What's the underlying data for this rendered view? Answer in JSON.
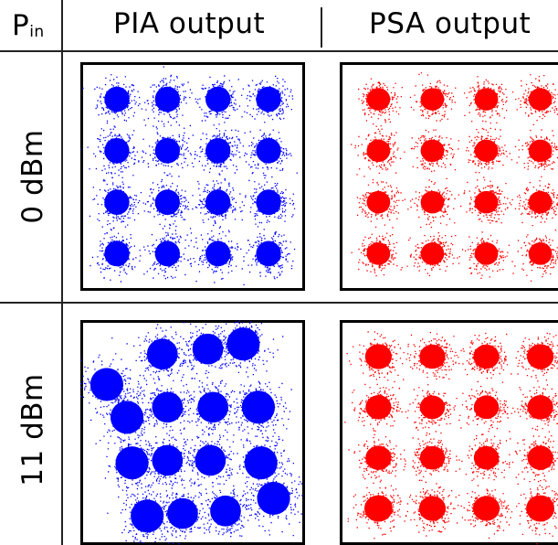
{
  "header": {
    "pin_label": "P",
    "pin_subscript": "in",
    "col1_title": "PIA output",
    "col2_title": "PSA output"
  },
  "rows": [
    {
      "label": "0 dBm"
    },
    {
      "label": "11 dBm"
    }
  ],
  "chart_data": [
    {
      "type": "scatter",
      "title": "PIA output — 0 dBm",
      "color": "#0000ff",
      "constellation": "16-QAM",
      "grid": false,
      "clusters": [
        {
          "x": -3,
          "y": 3,
          "spread": 0.34
        },
        {
          "x": -1,
          "y": 3,
          "spread": 0.34
        },
        {
          "x": 1,
          "y": 3,
          "spread": 0.34
        },
        {
          "x": 3,
          "y": 3,
          "spread": 0.34
        },
        {
          "x": -3,
          "y": 1,
          "spread": 0.34
        },
        {
          "x": -1,
          "y": 1,
          "spread": 0.34
        },
        {
          "x": 1,
          "y": 1,
          "spread": 0.34
        },
        {
          "x": 3,
          "y": 1,
          "spread": 0.34
        },
        {
          "x": -3,
          "y": -1,
          "spread": 0.34
        },
        {
          "x": -1,
          "y": -1,
          "spread": 0.34
        },
        {
          "x": 1,
          "y": -1,
          "spread": 0.34
        },
        {
          "x": 3,
          "y": -1,
          "spread": 0.34
        },
        {
          "x": -3,
          "y": -3,
          "spread": 0.34
        },
        {
          "x": -1,
          "y": -3,
          "spread": 0.34
        },
        {
          "x": 1,
          "y": -3,
          "spread": 0.34
        },
        {
          "x": 3,
          "y": -3,
          "spread": 0.34
        }
      ]
    },
    {
      "type": "scatter",
      "title": "PSA output — 0 dBm",
      "color": "#ff0000",
      "constellation": "16-QAM",
      "grid": false,
      "clusters": [
        {
          "x": -3,
          "y": 3,
          "spread": 0.3
        },
        {
          "x": -1,
          "y": 3,
          "spread": 0.3
        },
        {
          "x": 1,
          "y": 3,
          "spread": 0.3
        },
        {
          "x": 3,
          "y": 3,
          "spread": 0.3
        },
        {
          "x": -3,
          "y": 1,
          "spread": 0.3
        },
        {
          "x": -1,
          "y": 1,
          "spread": 0.3
        },
        {
          "x": 1,
          "y": 1,
          "spread": 0.3
        },
        {
          "x": 3,
          "y": 1,
          "spread": 0.3
        },
        {
          "x": -3,
          "y": -1,
          "spread": 0.3
        },
        {
          "x": -1,
          "y": -1,
          "spread": 0.3
        },
        {
          "x": 1,
          "y": -1,
          "spread": 0.3
        },
        {
          "x": 3,
          "y": -1,
          "spread": 0.3
        },
        {
          "x": -3,
          "y": -3,
          "spread": 0.3
        },
        {
          "x": -1,
          "y": -3,
          "spread": 0.3
        },
        {
          "x": 1,
          "y": -3,
          "spread": 0.3
        },
        {
          "x": 3,
          "y": -3,
          "spread": 0.3
        }
      ]
    },
    {
      "type": "scatter",
      "title": "PIA output — 11 dBm",
      "color": "#0000ff",
      "constellation": "16-QAM (distorted)",
      "grid": false,
      "clusters": [
        {
          "x": -3.4,
          "y": 1.9,
          "spread": 0.45
        },
        {
          "x": -1.2,
          "y": 3.1,
          "spread": 0.42
        },
        {
          "x": 0.6,
          "y": 3.3,
          "spread": 0.42
        },
        {
          "x": 2.0,
          "y": 3.5,
          "spread": 0.45
        },
        {
          "x": -2.6,
          "y": 0.6,
          "spread": 0.45
        },
        {
          "x": -1.0,
          "y": 1.0,
          "spread": 0.42
        },
        {
          "x": 0.8,
          "y": 1.0,
          "spread": 0.42
        },
        {
          "x": 2.6,
          "y": 1.0,
          "spread": 0.45
        },
        {
          "x": -2.4,
          "y": -1.2,
          "spread": 0.45
        },
        {
          "x": -1.0,
          "y": -1.1,
          "spread": 0.42
        },
        {
          "x": 0.7,
          "y": -1.1,
          "spread": 0.42
        },
        {
          "x": 2.7,
          "y": -1.2,
          "spread": 0.45
        },
        {
          "x": -1.8,
          "y": -3.3,
          "spread": 0.45
        },
        {
          "x": -0.4,
          "y": -3.2,
          "spread": 0.42
        },
        {
          "x": 1.3,
          "y": -3.1,
          "spread": 0.42
        },
        {
          "x": 3.2,
          "y": -2.6,
          "spread": 0.45
        }
      ]
    },
    {
      "type": "scatter",
      "title": "PSA output — 11 dBm",
      "color": "#ff0000",
      "constellation": "16-QAM",
      "grid": false,
      "clusters": [
        {
          "x": -3,
          "y": 3,
          "spread": 0.34
        },
        {
          "x": -1,
          "y": 3,
          "spread": 0.33
        },
        {
          "x": 1,
          "y": 3,
          "spread": 0.33
        },
        {
          "x": 3,
          "y": 3,
          "spread": 0.34
        },
        {
          "x": -3,
          "y": 1,
          "spread": 0.33
        },
        {
          "x": -1,
          "y": 1,
          "spread": 0.32
        },
        {
          "x": 1,
          "y": 1,
          "spread": 0.32
        },
        {
          "x": 3,
          "y": 1,
          "spread": 0.33
        },
        {
          "x": -3,
          "y": -1,
          "spread": 0.33
        },
        {
          "x": -1,
          "y": -1,
          "spread": 0.32
        },
        {
          "x": 1,
          "y": -1,
          "spread": 0.32
        },
        {
          "x": 3,
          "y": -1,
          "spread": 0.33
        },
        {
          "x": -3,
          "y": -3,
          "spread": 0.36
        },
        {
          "x": -1,
          "y": -3,
          "spread": 0.34
        },
        {
          "x": 1,
          "y": -3,
          "spread": 0.34
        },
        {
          "x": 3,
          "y": -3,
          "spread": 0.36
        }
      ]
    }
  ]
}
